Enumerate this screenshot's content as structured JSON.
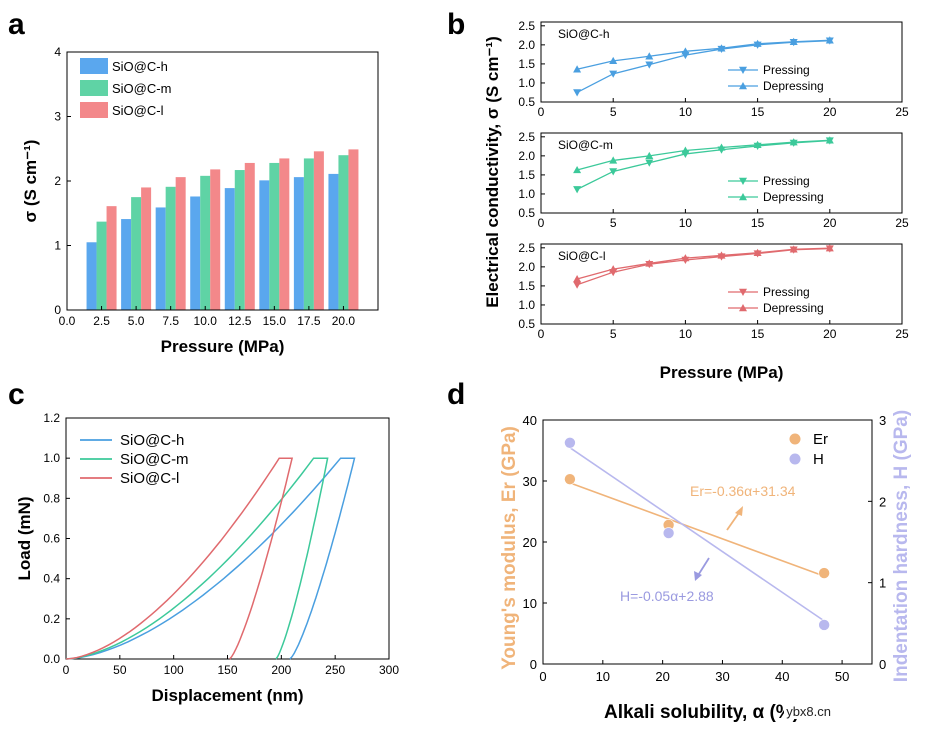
{
  "watermark": "ybx8.cn",
  "chart_data": [
    {
      "panel": "a",
      "type": "bar",
      "xlabel": "Pressure (MPa)",
      "ylabel": "σ (S cm⁻¹)",
      "xlim": [
        0,
        22.5
      ],
      "ylim": [
        0,
        4
      ],
      "xticks": [
        "0.0",
        "2.5",
        "5.0",
        "7.5",
        "10.0",
        "12.5",
        "15.0",
        "17.5",
        "20.0"
      ],
      "yticks": [
        "0",
        "1",
        "2",
        "3",
        "4"
      ],
      "categories": [
        2.5,
        5,
        7.5,
        10,
        12.5,
        15,
        17.5,
        20
      ],
      "legend_position": "top-left",
      "series": [
        {
          "name": "SiO@C-h",
          "color": "#5aa7ee",
          "values": [
            1.05,
            1.41,
            1.59,
            1.76,
            1.89,
            2.01,
            2.06,
            2.11
          ]
        },
        {
          "name": "SiO@C-m",
          "color": "#5fd3a5",
          "values": [
            1.37,
            1.75,
            1.91,
            2.08,
            2.17,
            2.28,
            2.35,
            2.4
          ]
        },
        {
          "name": "SiO@C-l",
          "color": "#f3888a",
          "values": [
            1.61,
            1.9,
            2.06,
            2.18,
            2.28,
            2.35,
            2.46,
            2.49
          ]
        }
      ]
    },
    {
      "panel": "b",
      "type": "line",
      "xlabel": "Pressure (MPa)",
      "ylabel": "Electrical conductivity, σ (S cm⁻¹)",
      "xlim": [
        0,
        25
      ],
      "ylim": [
        0.5,
        2.6
      ],
      "xticks": [
        "0",
        "5",
        "10",
        "15",
        "20",
        "25"
      ],
      "yticks": [
        "0.5",
        "1.0",
        "1.5",
        "2.0",
        "2.5"
      ],
      "x": [
        2.5,
        5,
        7.5,
        10,
        12.5,
        15,
        17.5,
        20
      ],
      "subplots": [
        {
          "name": "SiO@C-h",
          "color": "#4a9fe0",
          "series": [
            {
              "name": "Pressing",
              "marker": "down",
              "values": [
                0.75,
                1.24,
                1.48,
                1.73,
                1.89,
                2.0,
                2.07,
                2.11
              ]
            },
            {
              "name": "Depressing",
              "marker": "up",
              "values": [
                1.36,
                1.58,
                1.7,
                1.83,
                1.91,
                2.03,
                2.08,
                2.12
              ]
            }
          ]
        },
        {
          "name": "SiO@C-m",
          "color": "#3cc99a",
          "series": [
            {
              "name": "Pressing",
              "marker": "down",
              "values": [
                1.12,
                1.59,
                1.82,
                2.05,
                2.16,
                2.26,
                2.34,
                2.4
              ]
            },
            {
              "name": "Depressing",
              "marker": "up",
              "values": [
                1.63,
                1.88,
                2.0,
                2.14,
                2.22,
                2.29,
                2.36,
                2.41
              ]
            }
          ]
        },
        {
          "name": "SiO@C-l",
          "color": "#e06a6e",
          "series": [
            {
              "name": "Pressing",
              "marker": "down",
              "values": [
                1.53,
                1.86,
                2.07,
                2.18,
                2.27,
                2.35,
                2.45,
                2.48
              ]
            },
            {
              "name": "Depressing",
              "marker": "up",
              "values": [
                1.68,
                1.94,
                2.09,
                2.23,
                2.3,
                2.37,
                2.46,
                2.49
              ]
            }
          ]
        }
      ]
    },
    {
      "panel": "c",
      "type": "line",
      "xlabel": "Displacement (nm)",
      "ylabel": "Load (mN)",
      "xlim": [
        0,
        300
      ],
      "ylim": [
        0,
        1.2
      ],
      "xticks": [
        "0",
        "50",
        "100",
        "150",
        "200",
        "250",
        "300"
      ],
      "yticks": [
        "0.0",
        "0.2",
        "0.4",
        "0.6",
        "0.8",
        "1.0",
        "1.2"
      ],
      "legend_position": "top-left",
      "series": [
        {
          "name": "SiO@C-h",
          "color": "#4a9fe0",
          "loading_end": 255,
          "hold_end": 268,
          "unload_end": 208
        },
        {
          "name": "SiO@C-m",
          "color": "#3cc99a",
          "loading_end": 230,
          "hold_end": 243,
          "unload_end": 195
        },
        {
          "name": "SiO@C-l",
          "color": "#e06a6e",
          "loading_end": 198,
          "hold_end": 210,
          "unload_end": 152
        }
      ]
    },
    {
      "panel": "d",
      "type": "scatter",
      "xlabel": "Alkali solubility, α (%)",
      "ylabel": "Young's modulus, Er (GPa)",
      "ylabel2": "Indentation hardness, H (GPa)",
      "xlim": [
        0,
        55
      ],
      "ylim": [
        0,
        40
      ],
      "ylim2": [
        0,
        3
      ],
      "xticks": [
        "0",
        "10",
        "20",
        "30",
        "40",
        "50"
      ],
      "yticks": [
        "0",
        "10",
        "20",
        "30",
        "40"
      ],
      "yticks2": [
        "0",
        "1",
        "2",
        "3"
      ],
      "legend_position": "top-right",
      "series": [
        {
          "name": "Er",
          "color": "#f0b47a",
          "x": [
            4.5,
            21,
            47
          ],
          "values": [
            30.3,
            22.8,
            14.9
          ],
          "axis": "left"
        },
        {
          "name": "H",
          "color": "#b8b8ee",
          "x": [
            4.5,
            21,
            47
          ],
          "values": [
            2.72,
            1.61,
            0.48
          ],
          "axis": "right"
        }
      ],
      "fits": [
        {
          "name": "Er fit",
          "color": "#f0b47a",
          "x": [
            4.5,
            47
          ],
          "values": [
            29.7,
            14.4
          ],
          "axis": "left"
        },
        {
          "name": "H fit",
          "color": "#b8b8ee",
          "x": [
            4.5,
            47
          ],
          "values": [
            2.66,
            0.53
          ],
          "axis": "right"
        }
      ],
      "annotations": [
        {
          "text": "Er=-0.36α+31.34",
          "color": "#f0b47a"
        },
        {
          "text": "H=-0.05α+2.88",
          "color": "#9a9ae0"
        }
      ]
    }
  ]
}
